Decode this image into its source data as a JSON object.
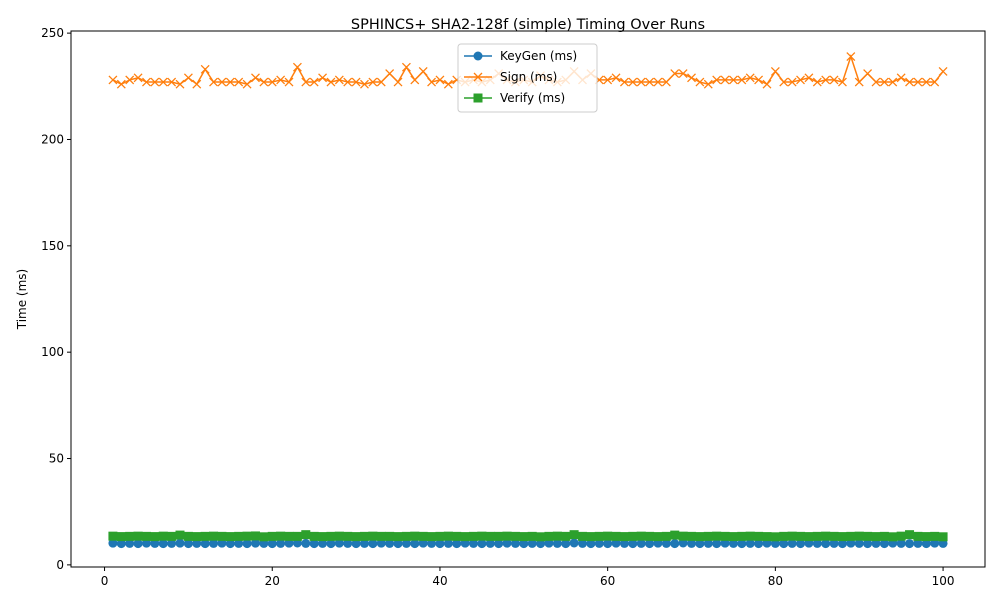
{
  "chart_data": {
    "type": "line",
    "title": "SPHINCS+ SHA2-128f (simple) Timing Over Runs",
    "xlabel": "",
    "ylabel": "Time (ms)",
    "xlim": [
      -4,
      105
    ],
    "ylim": [
      -1,
      251
    ],
    "x_ticks": [
      0,
      20,
      40,
      60,
      80,
      100
    ],
    "y_ticks": [
      0,
      50,
      100,
      150,
      200,
      250
    ],
    "grid": false,
    "legend_position": "top-center",
    "x_start": 1,
    "series": [
      {
        "name": "KeyGen (ms)",
        "color": "#1f77b4",
        "marker": "circle",
        "values": [
          10.2,
          10.0,
          10.1,
          10.0,
          10.2,
          10.1,
          10.0,
          10.1,
          10.2,
          10.0,
          10.1,
          10.0,
          10.1,
          10.2,
          10.0,
          10.1,
          10.0,
          10.2,
          10.1,
          10.0,
          10.1,
          10.2,
          10.3,
          10.1,
          10.0,
          10.1,
          10.0,
          10.2,
          10.1,
          10.0,
          10.1,
          10.0,
          10.2,
          10.1,
          10.0,
          10.1,
          10.0,
          10.2,
          10.1,
          10.0,
          10.1,
          10.0,
          10.2,
          10.1,
          10.0,
          10.1,
          10.0,
          10.2,
          10.1,
          10.0,
          10.1,
          10.0,
          10.2,
          10.1,
          10.0,
          10.3,
          10.1,
          10.0,
          10.1,
          10.0,
          10.2,
          10.1,
          10.0,
          10.1,
          10.0,
          10.2,
          10.1,
          10.0,
          10.3,
          10.1,
          10.0,
          10.1,
          10.0,
          10.2,
          10.1,
          10.0,
          10.1,
          10.0,
          10.2,
          10.1,
          10.0,
          10.1,
          10.0,
          10.2,
          10.1,
          10.0,
          10.1,
          10.0,
          10.2,
          10.1,
          10.0,
          10.1,
          10.0,
          10.2,
          10.1,
          10.0,
          10.1,
          10.0,
          10.2,
          10.1
        ]
      },
      {
        "name": "Sign (ms)",
        "color": "#ff7f0e",
        "marker": "x",
        "values": [
          228,
          226,
          228,
          229,
          227,
          227,
          227,
          227,
          226,
          229,
          226,
          233,
          227,
          227,
          227,
          227,
          226,
          229,
          227,
          227,
          228,
          227,
          234,
          227,
          227,
          229,
          227,
          228,
          227,
          227,
          226,
          227,
          227,
          231,
          227,
          234,
          228,
          232,
          227,
          228,
          226,
          228,
          227,
          228,
          227,
          228,
          231,
          228,
          227,
          228,
          227,
          230,
          228,
          227,
          228,
          232,
          228,
          231,
          228,
          228,
          229,
          227,
          227,
          227,
          227,
          227,
          227,
          231,
          231,
          229,
          227,
          226,
          228,
          228,
          228,
          228,
          229,
          228,
          226,
          232,
          227,
          227,
          228,
          229,
          227,
          228,
          228,
          227,
          239,
          227,
          231,
          227,
          227,
          227,
          229,
          227,
          227,
          227,
          227,
          232
        ]
      },
      {
        "name": "Verify (ms)",
        "color": "#2ca02c",
        "marker": "square",
        "values": [
          13.5,
          13.3,
          13.4,
          13.5,
          13.4,
          13.3,
          13.5,
          13.4,
          14.0,
          13.4,
          13.3,
          13.4,
          13.5,
          13.4,
          13.3,
          13.4,
          13.5,
          13.6,
          13.2,
          13.4,
          13.5,
          13.4,
          13.4,
          14.2,
          13.4,
          13.3,
          13.4,
          13.5,
          13.4,
          13.3,
          13.4,
          13.5,
          13.4,
          13.4,
          13.3,
          13.4,
          13.5,
          13.4,
          13.3,
          13.4,
          13.5,
          13.4,
          13.3,
          13.4,
          13.5,
          13.4,
          13.4,
          13.5,
          13.4,
          13.3,
          13.4,
          13.2,
          13.4,
          13.5,
          13.4,
          14.2,
          13.4,
          13.3,
          13.4,
          13.5,
          13.4,
          13.3,
          13.4,
          13.5,
          13.4,
          13.3,
          13.4,
          14.0,
          13.5,
          13.4,
          13.3,
          13.4,
          13.5,
          13.4,
          13.3,
          13.4,
          13.5,
          13.4,
          13.3,
          13.2,
          13.4,
          13.5,
          13.4,
          13.3,
          13.4,
          13.5,
          13.4,
          13.3,
          13.4,
          13.5,
          13.4,
          13.3,
          13.4,
          13.2,
          13.5,
          14.2,
          13.4,
          13.3,
          13.4,
          13.2
        ]
      }
    ]
  }
}
